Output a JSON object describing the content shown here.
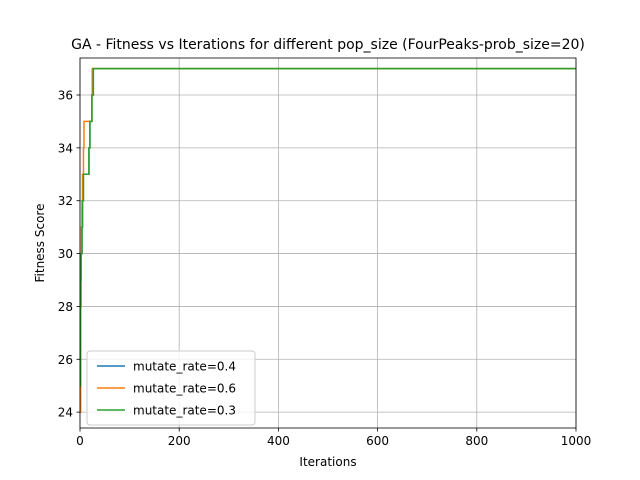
{
  "chart_data": {
    "type": "line",
    "title": "GA - Fitness vs Iterations for different pop_size (FourPeaks-prob_size=20)",
    "xlabel": "Iterations",
    "ylabel": "Fitness Score",
    "xlim": [
      0,
      1000
    ],
    "ylim": [
      23.4,
      37.4
    ],
    "xticks": [
      0,
      200,
      400,
      600,
      800,
      1000
    ],
    "yticks": [
      24,
      26,
      28,
      30,
      32,
      34,
      36
    ],
    "grid": true,
    "legend_position": "lower-left",
    "series": [
      {
        "name": "mutate_rate=0.4",
        "color": "#1f77b4",
        "x": [
          0,
          1,
          2,
          3,
          4,
          5,
          6,
          7,
          8,
          9,
          12,
          15,
          18,
          20,
          22,
          24,
          25,
          1000
        ],
        "y": [
          24,
          28,
          30,
          30,
          31,
          32,
          33,
          33,
          33,
          33,
          33,
          33,
          34,
          35,
          35,
          36,
          37,
          37
        ]
      },
      {
        "name": "mutate_rate=0.6",
        "color": "#ff7f0e",
        "x": [
          0,
          1,
          2,
          3,
          4,
          5,
          6,
          7,
          8,
          10,
          12,
          15,
          18,
          20,
          22,
          24,
          26,
          1000
        ],
        "y": [
          24,
          28,
          30,
          31,
          32,
          33,
          33,
          34,
          35,
          35,
          35,
          35,
          35,
          35,
          35,
          36,
          37,
          37
        ]
      },
      {
        "name": "mutate_rate=0.3",
        "color": "#2ca02c",
        "x": [
          0,
          1,
          2,
          3,
          4,
          5,
          6,
          7,
          8,
          10,
          15,
          17,
          18,
          20,
          22,
          24,
          25,
          27,
          1000
        ],
        "y": [
          25,
          29,
          30,
          30,
          31,
          32,
          32,
          33,
          33,
          33,
          33,
          33,
          34,
          35,
          35,
          36,
          36,
          37,
          37
        ]
      }
    ]
  }
}
